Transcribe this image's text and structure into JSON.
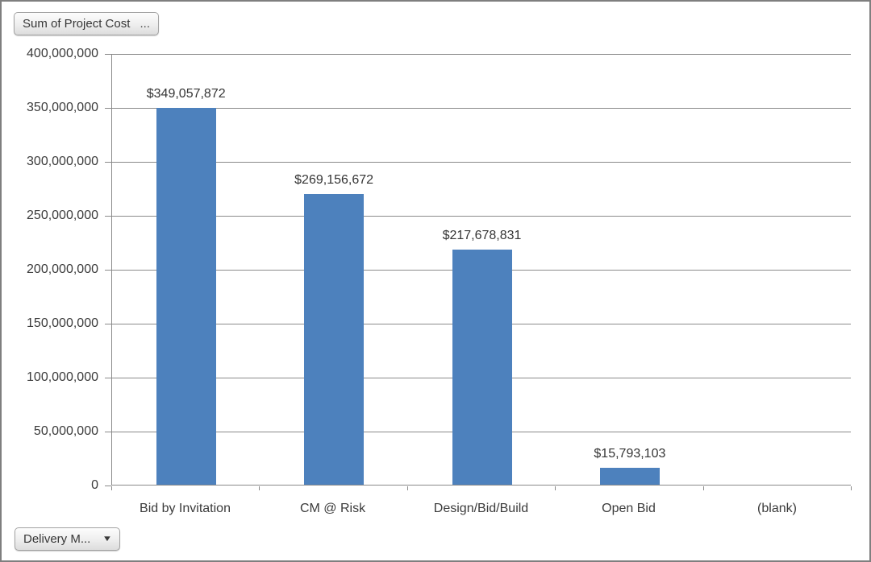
{
  "buttons": {
    "value_field": {
      "label": "Sum of Project Cost",
      "ellipsis": "..."
    },
    "axis_field": {
      "label": "Delivery M...",
      "arrow": "▼"
    }
  },
  "chart_data": {
    "type": "bar",
    "title": "",
    "xlabel": "",
    "ylabel": "",
    "categories": [
      "Bid by Invitation",
      "CM @ Risk",
      "Design/Bid/Build",
      "Open Bid",
      "(blank)"
    ],
    "values": [
      349057872,
      269156672,
      217678831,
      15793103,
      null
    ],
    "data_labels": [
      "$349,057,872",
      "$269,156,672",
      "$217,678,831",
      "$15,793,103",
      ""
    ],
    "ylim": [
      0,
      400000000
    ],
    "ytick_step": 50000000,
    "ytick_labels_top_to_bottom": [
      "400,000,000",
      "350,000,000",
      "300,000,000",
      "250,000,000",
      "200,000,000",
      "150,000,000",
      "100,000,000",
      "50,000,000",
      "0"
    ],
    "grid": true,
    "legend": "none",
    "colors": {
      "bar": "#4D81BD",
      "axis": "#8A8A8A",
      "gridline": "#8A8A8A",
      "text": "#3B3B3B"
    }
  }
}
